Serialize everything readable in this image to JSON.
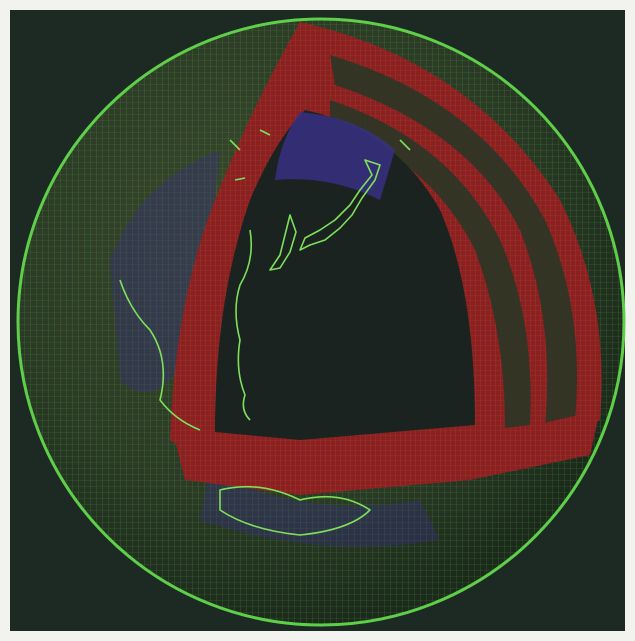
{
  "image": {
    "subject": "globe-mesh-cutaway",
    "colors": {
      "border": "#f2f2ef",
      "background": "#1d2a24",
      "mesh_green": "#5fcf4a",
      "mesh_green_dim": "#2f5a2c",
      "shell_red": "#8a2020",
      "shell_red_light": "#a83a30",
      "core_dark": "#1a2320",
      "ocean_blue": "#3a2f8a",
      "coast_green": "#7ee05a"
    }
  }
}
